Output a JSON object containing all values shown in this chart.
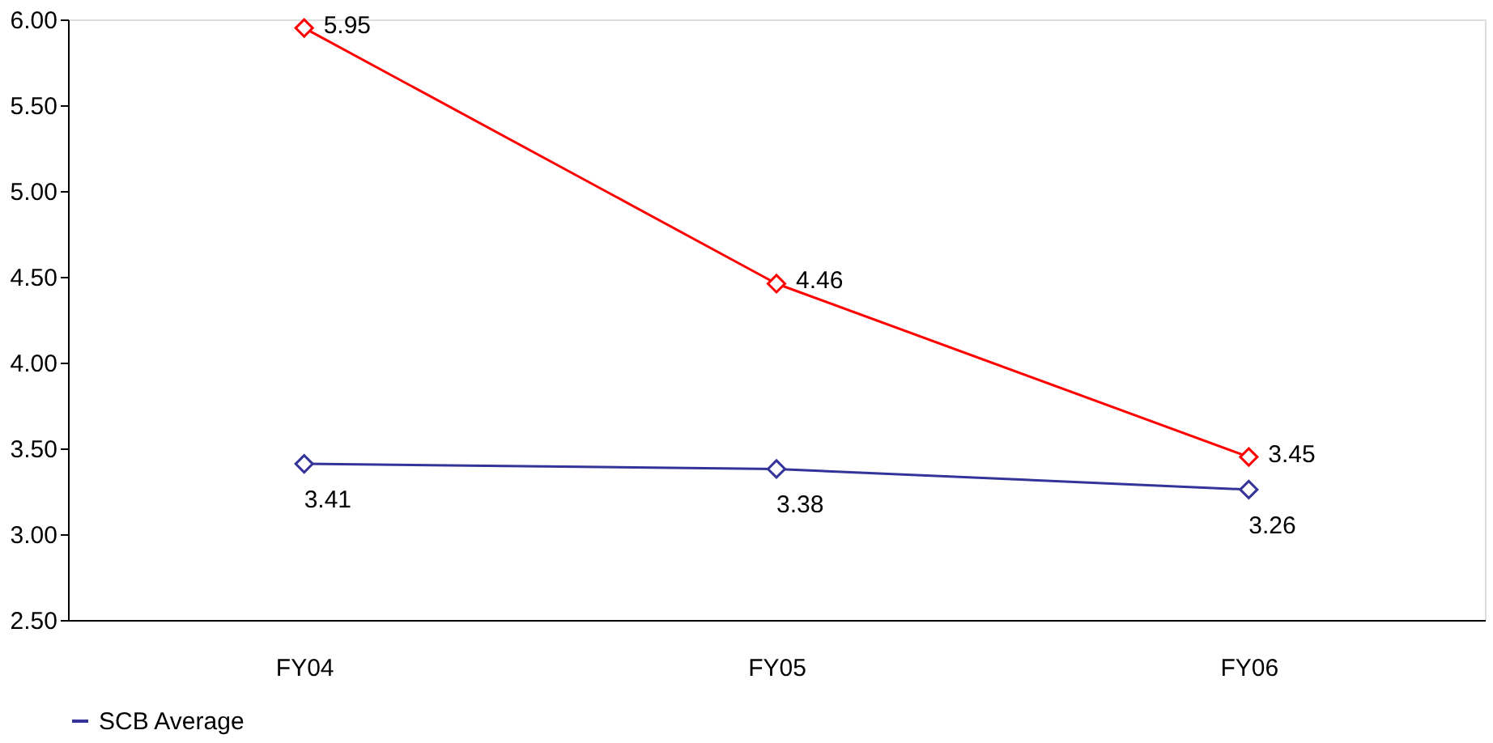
{
  "chart_data": {
    "type": "line",
    "categories": [
      "FY04",
      "FY05",
      "FY06"
    ],
    "series": [
      {
        "name": "SCB Average",
        "color": "#333399",
        "values": [
          3.41,
          3.38,
          3.26
        ]
      },
      {
        "color": "#ff0000",
        "values": [
          5.95,
          4.46,
          3.45
        ]
      }
    ],
    "ylim": [
      2.5,
      6.0
    ],
    "yticks": [
      {
        "value": 2.5,
        "label": "2.50"
      },
      {
        "value": 3.0,
        "label": "3.00"
      },
      {
        "value": 3.5,
        "label": "3.50"
      },
      {
        "value": 4.0,
        "label": "4.00"
      },
      {
        "value": 4.5,
        "label": "4.50"
      },
      {
        "value": 5.0,
        "label": "5.00"
      },
      {
        "value": 5.5,
        "label": "5.50"
      },
      {
        "value": 6.0,
        "label": "6.00"
      }
    ],
    "marker": "diamond",
    "line_style": "solid",
    "data_labels": true,
    "grid": false,
    "legend": "bottom"
  }
}
